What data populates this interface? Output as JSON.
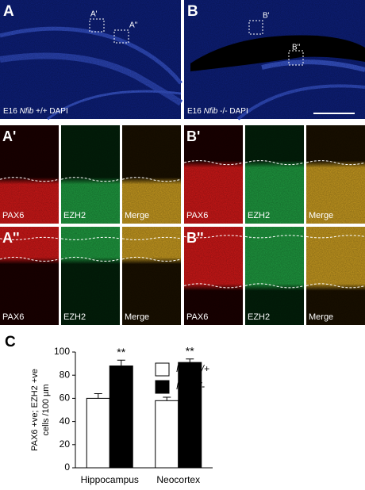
{
  "panels": [
    {
      "label": "A",
      "inset_labels": [
        "A'",
        "A''"
      ],
      "caption": {
        "stage": "E16",
        "gene": "Nfib",
        "genotype": "+/+",
        "stain": "DAPI"
      }
    },
    {
      "label": "B",
      "inset_labels": [
        "B'",
        "B''"
      ],
      "caption": {
        "stage": "E16",
        "gene": "Nfib",
        "genotype": "-/-",
        "stain": "DAPI"
      }
    }
  ],
  "insets": [
    {
      "label": "A'",
      "channels": [
        "PAX6",
        "EZH2",
        "Merge"
      ]
    },
    {
      "label": "B'",
      "channels": [
        "PAX6",
        "EZH2",
        "Merge"
      ]
    },
    {
      "label": "A''",
      "channels": [
        "PAX6",
        "EZH2",
        "Merge"
      ]
    },
    {
      "label": "B''",
      "channels": [
        "PAX6",
        "EZH2",
        "Merge"
      ]
    }
  ],
  "chart_label": "C",
  "chart_data": {
    "type": "bar",
    "y_label_lines": [
      "PAX6 +ve; EZH2 +ve",
      "cells /100 µm"
    ],
    "categories": [
      "Hippocampus",
      "Neocortex"
    ],
    "series": [
      {
        "name": "Nfib +/+",
        "color": "#ffffff",
        "values": [
          60,
          58
        ],
        "errors": [
          4,
          3
        ]
      },
      {
        "name": "Nfib -/-",
        "color": "#000000",
        "values": [
          88,
          91
        ],
        "errors": [
          5,
          3
        ]
      }
    ],
    "annotations": [
      "**",
      "**"
    ],
    "ylim": [
      0,
      100
    ],
    "yticks": [
      0,
      20,
      40,
      60,
      80,
      100
    ]
  }
}
